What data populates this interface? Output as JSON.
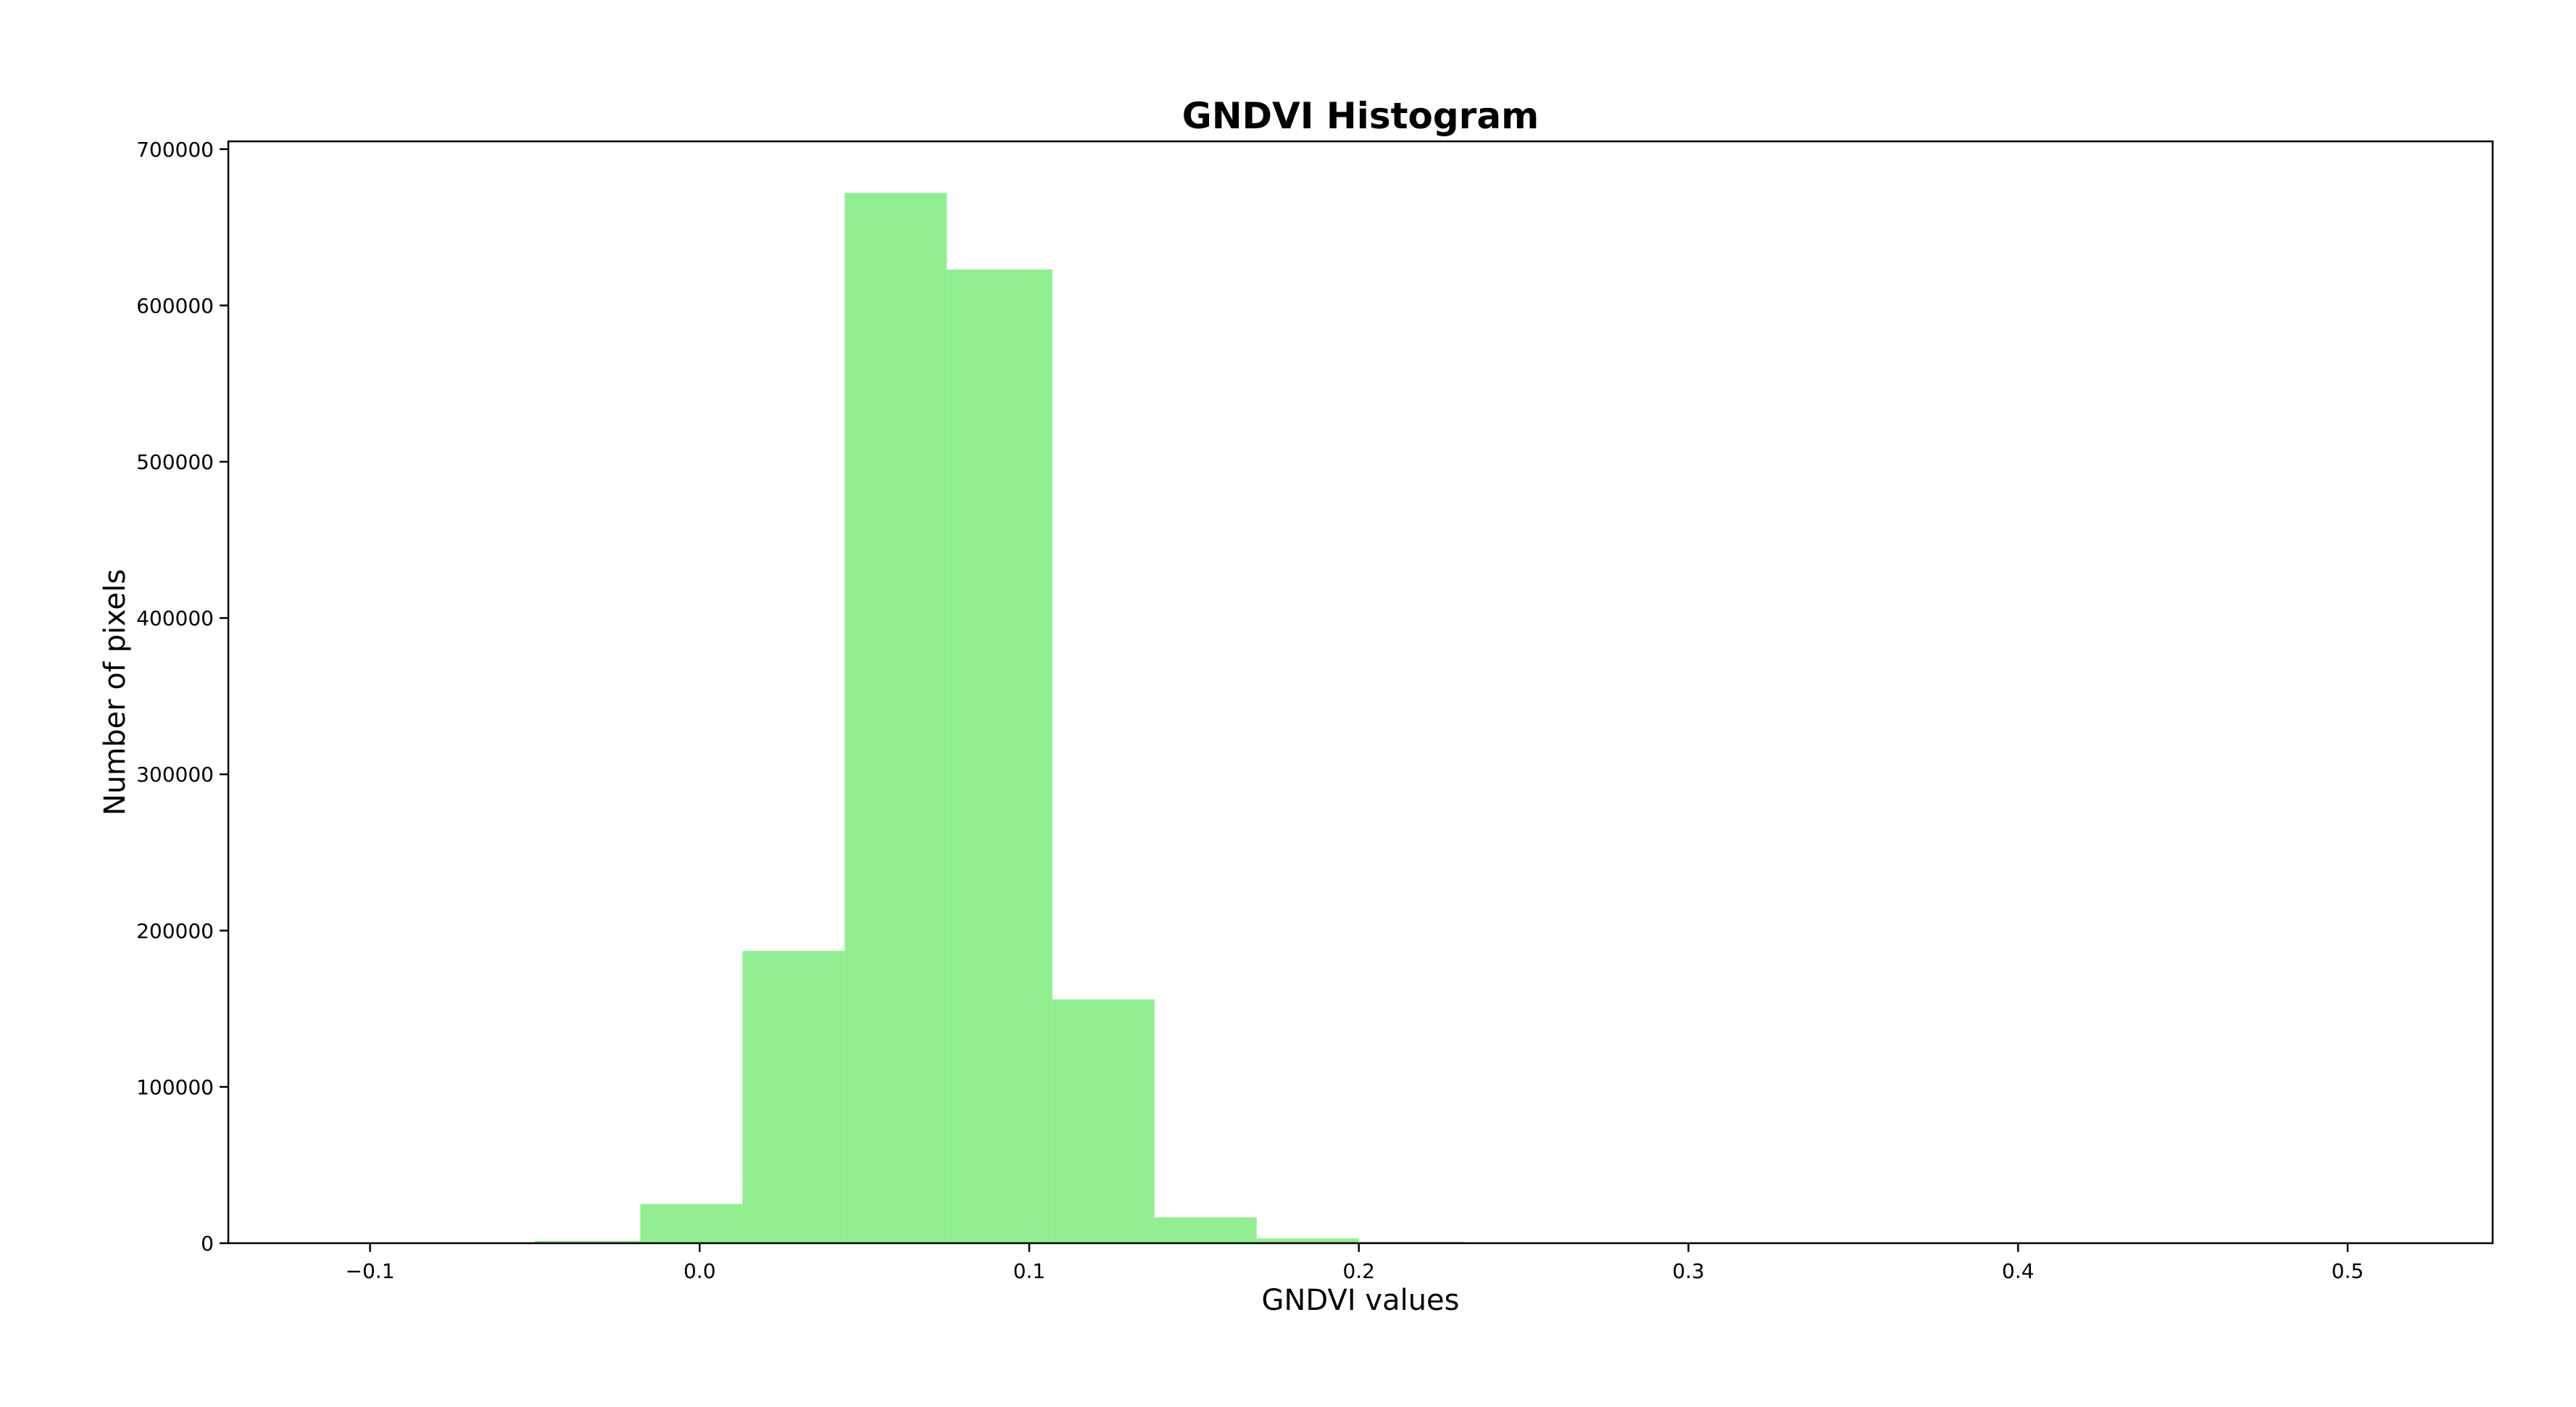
{
  "chart_data": {
    "type": "bar",
    "title": "GNDVI Histogram",
    "xlabel": "GNDVI values",
    "ylabel": "Number of pixels",
    "xlim": [
      -0.143,
      0.544
    ],
    "ylim": [
      0,
      705000
    ],
    "x_ticks": [
      {
        "value": -0.1,
        "label": "−0.1"
      },
      {
        "value": 0.0,
        "label": "0.0"
      },
      {
        "value": 0.1,
        "label": "0.1"
      },
      {
        "value": 0.2,
        "label": "0.2"
      },
      {
        "value": 0.3,
        "label": "0.3"
      },
      {
        "value": 0.4,
        "label": "0.4"
      },
      {
        "value": 0.5,
        "label": "0.5"
      }
    ],
    "y_ticks": [
      {
        "value": 0,
        "label": "0"
      },
      {
        "value": 100000,
        "label": "100000"
      },
      {
        "value": 200000,
        "label": "200000"
      },
      {
        "value": 300000,
        "label": "300000"
      },
      {
        "value": 400000,
        "label": "400000"
      },
      {
        "value": 500000,
        "label": "500000"
      },
      {
        "value": 600000,
        "label": "600000"
      },
      {
        "value": 700000,
        "label": "700000"
      }
    ],
    "grid": false,
    "bar_color": "#90EE90",
    "bins": [
      {
        "x0": -0.112,
        "x1": -0.081,
        "count": 0
      },
      {
        "x0": -0.081,
        "x1": -0.05,
        "count": 0
      },
      {
        "x0": -0.05,
        "x1": -0.018,
        "count": 1500
      },
      {
        "x0": -0.018,
        "x1": 0.013,
        "count": 25000
      },
      {
        "x0": 0.013,
        "x1": 0.044,
        "count": 187000
      },
      {
        "x0": 0.044,
        "x1": 0.075,
        "count": 672000
      },
      {
        "x0": 0.075,
        "x1": 0.107,
        "count": 623000
      },
      {
        "x0": 0.107,
        "x1": 0.138,
        "count": 156000
      },
      {
        "x0": 0.138,
        "x1": 0.169,
        "count": 16500
      },
      {
        "x0": 0.169,
        "x1": 0.2,
        "count": 3000
      },
      {
        "x0": 0.2,
        "x1": 0.232,
        "count": 800
      },
      {
        "x0": 0.232,
        "x1": 0.263,
        "count": 0
      },
      {
        "x0": 0.263,
        "x1": 0.294,
        "count": 0
      },
      {
        "x0": 0.294,
        "x1": 0.325,
        "count": 0
      },
      {
        "x0": 0.325,
        "x1": 0.357,
        "count": 0
      },
      {
        "x0": 0.357,
        "x1": 0.388,
        "count": 0
      },
      {
        "x0": 0.388,
        "x1": 0.419,
        "count": 0
      },
      {
        "x0": 0.419,
        "x1": 0.45,
        "count": 0
      },
      {
        "x0": 0.45,
        "x1": 0.482,
        "count": 0
      },
      {
        "x0": 0.482,
        "x1": 0.513,
        "count": 0
      }
    ]
  }
}
